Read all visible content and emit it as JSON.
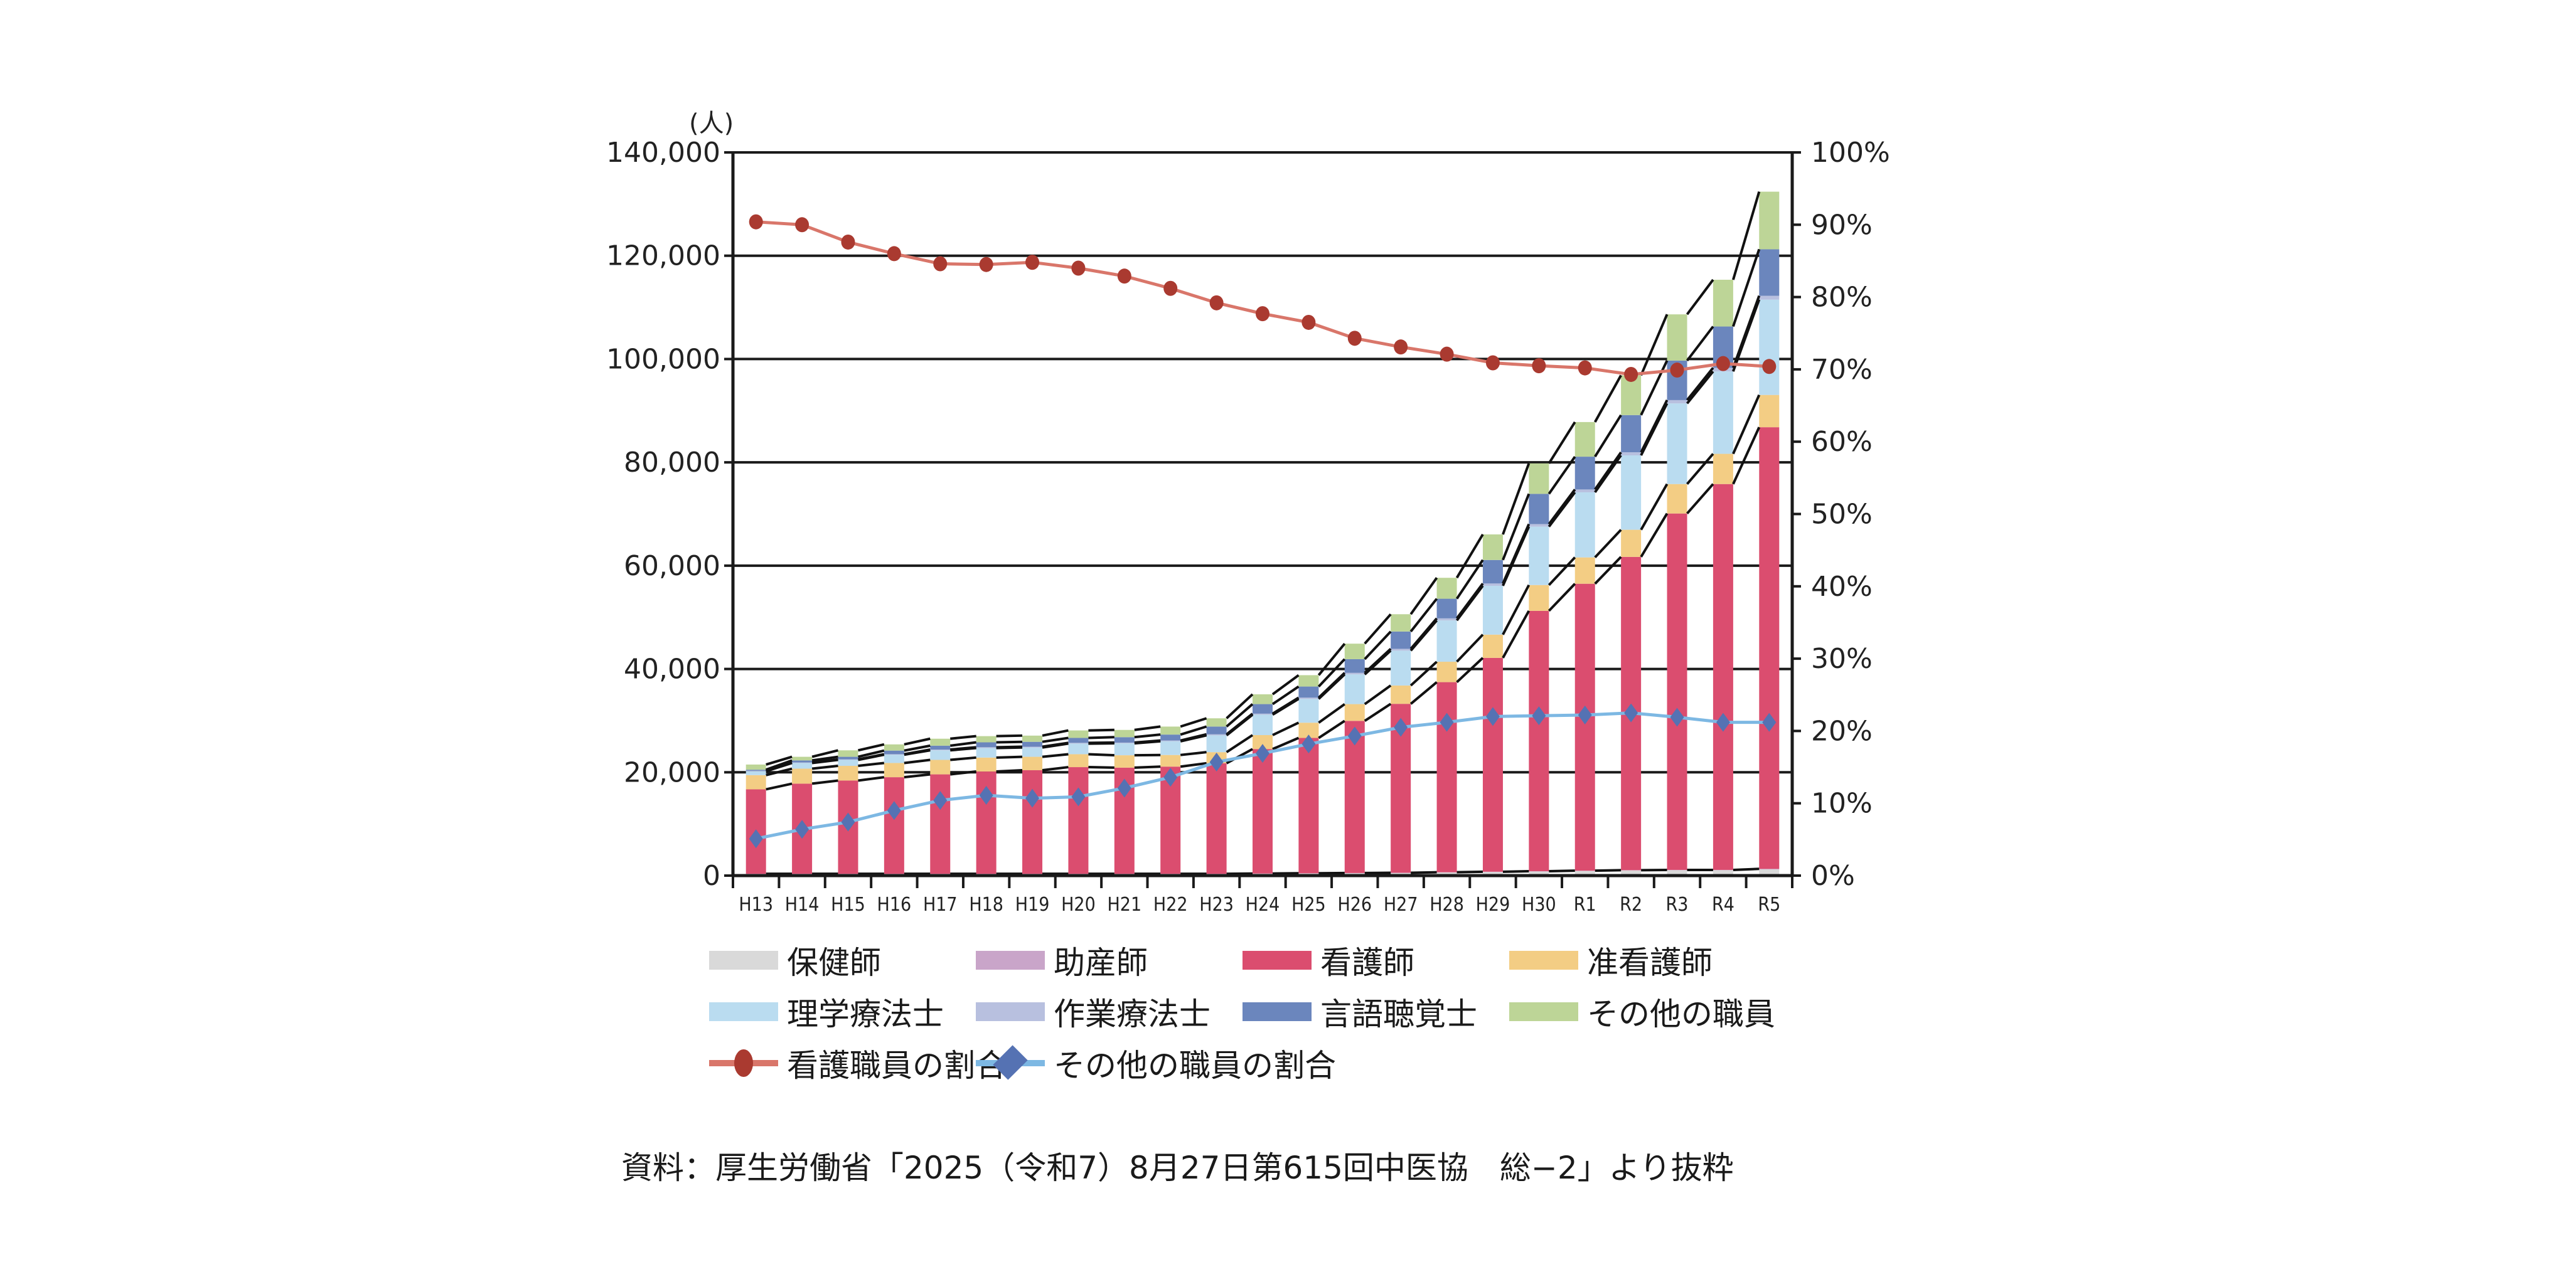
{
  "chart_data": {
    "type": "bar",
    "stacked": true,
    "title": "",
    "ylabel": "(人)",
    "y2label": "",
    "xlabel": "",
    "ylim": [
      0,
      140000
    ],
    "y2lim": [
      0,
      100
    ],
    "yticks": [
      "0",
      "20,000",
      "40,000",
      "60,000",
      "80,000",
      "100,000",
      "120,000",
      "140,000"
    ],
    "yticks_values": [
      0,
      20000,
      40000,
      60000,
      80000,
      100000,
      120000,
      140000
    ],
    "y2ticks": [
      "0%",
      "10%",
      "20%",
      "30%",
      "40%",
      "50%",
      "60%",
      "70%",
      "80%",
      "90%",
      "100%"
    ],
    "y2ticks_values": [
      0,
      10,
      20,
      30,
      40,
      50,
      60,
      70,
      80,
      90,
      100
    ],
    "grid": true,
    "legend_position": "bottom",
    "categories": [
      "H13",
      "H14",
      "H15",
      "H16",
      "H17",
      "H18",
      "H19",
      "H20",
      "H21",
      "H22",
      "H23",
      "H24",
      "H25",
      "H26",
      "H27",
      "H28",
      "H29",
      "H30",
      "R1",
      "R2",
      "R3",
      "R4",
      "R5"
    ],
    "series": [
      {
        "name": "保健師",
        "color": "#d9d9d9",
        "values": [
          300,
          300,
          300,
          300,
          300,
          300,
          300,
          300,
          300,
          300,
          300,
          350,
          400,
          450,
          500,
          600,
          700,
          800,
          900,
          1000,
          1050,
          1050,
          1200
        ]
      },
      {
        "name": "助産師",
        "color": "#c9a5c9",
        "values": [
          50,
          50,
          50,
          50,
          50,
          50,
          50,
          50,
          50,
          50,
          50,
          50,
          50,
          50,
          50,
          50,
          50,
          50,
          50,
          50,
          50,
          50,
          100
        ]
      },
      {
        "name": "看護師",
        "color": "#db4d6f",
        "values": [
          16350,
          17450,
          18050,
          18700,
          19250,
          19800,
          20050,
          20650,
          20550,
          20750,
          21400,
          24100,
          26200,
          29450,
          32700,
          36800,
          41400,
          50400,
          55550,
          60650,
          69000,
          74700,
          85500
        ]
      },
      {
        "name": "准看護師",
        "color": "#f3cd84",
        "values": [
          2750,
          2900,
          2850,
          2750,
          2800,
          2700,
          2600,
          2500,
          2400,
          2250,
          2150,
          2700,
          2950,
          3250,
          3550,
          3950,
          4500,
          5000,
          5100,
          5250,
          5700,
          5850,
          6250
        ]
      },
      {
        "name": "理学療法士",
        "color": "#badcf0",
        "values": [
          750,
          1100,
          1150,
          1600,
          1850,
          1850,
          1800,
          2050,
          2300,
          2650,
          3250,
          3950,
          4600,
          5750,
          6750,
          8000,
          9450,
          11300,
          12600,
          14400,
          15600,
          15950,
          18450
        ]
      },
      {
        "name": "作業療法士",
        "color": "#b8c0df",
        "values": [
          100,
          100,
          100,
          100,
          150,
          150,
          150,
          150,
          150,
          150,
          200,
          200,
          250,
          300,
          350,
          400,
          450,
          500,
          550,
          600,
          650,
          700,
          750
        ]
      },
      {
        "name": "言語聴覚士",
        "color": "#6b86bd",
        "values": [
          200,
          400,
          500,
          700,
          750,
          950,
          950,
          950,
          1050,
          1150,
          1500,
          1850,
          2150,
          2650,
          3350,
          3800,
          4550,
          5850,
          6350,
          7200,
          7650,
          8000,
          9000
        ]
      },
      {
        "name": "その他の職員",
        "color": "#bdd597",
        "values": [
          1000,
          700,
          1250,
          1200,
          1350,
          1200,
          1200,
          1450,
          1400,
          1550,
          1600,
          1900,
          2200,
          3000,
          3350,
          4050,
          4950,
          5900,
          6700,
          7700,
          8950,
          9050,
          11150
        ]
      }
    ],
    "line_series": [
      {
        "name": "看護職員の割合",
        "axis": "right",
        "color": "#d9766a",
        "marker": "circle",
        "marker_color": "#aa3a30",
        "values": [
          90.4,
          90.0,
          87.6,
          86.0,
          84.6,
          84.5,
          84.8,
          84.0,
          82.9,
          81.2,
          79.2,
          77.7,
          76.5,
          74.3,
          73.1,
          72.1,
          70.9,
          70.5,
          70.2,
          69.3,
          69.9,
          70.8,
          70.4
        ]
      },
      {
        "name": "その他の職員の割合",
        "axis": "right",
        "color": "#7db8e3",
        "marker": "diamond",
        "marker_color": "#5572b3",
        "values": [
          5.1,
          6.4,
          7.4,
          9.0,
          10.4,
          11.1,
          10.7,
          10.9,
          12.1,
          13.6,
          15.7,
          16.9,
          18.2,
          19.3,
          20.5,
          21.2,
          22.0,
          22.1,
          22.2,
          22.5,
          21.9,
          21.2,
          21.2
        ]
      }
    ]
  },
  "legend": {
    "rows": [
      [
        {
          "label": "保健師",
          "color": "#d9d9d9",
          "icon": "square-swatch"
        },
        {
          "label": "助産師",
          "color": "#c9a5c9",
          "icon": "square-swatch"
        },
        {
          "label": "看護師",
          "color": "#db4d6f",
          "icon": "square-swatch"
        },
        {
          "label": "准看護師",
          "color": "#f3cd84",
          "icon": "square-swatch"
        }
      ],
      [
        {
          "label": "理学療法士",
          "color": "#badcf0",
          "icon": "square-swatch"
        },
        {
          "label": "作業療法士",
          "color": "#b8c0df",
          "icon": "square-swatch"
        },
        {
          "label": "言語聴覚士",
          "color": "#6b86bd",
          "icon": "square-swatch"
        },
        {
          "label": "その他の職員",
          "color": "#bdd597",
          "icon": "square-swatch"
        }
      ],
      [
        {
          "label": "看護職員の割合",
          "color": "#d9766a",
          "marker_color": "#aa3a30",
          "icon": "line-circle-marker"
        },
        {
          "label": "その他の職員の割合",
          "color": "#7db8e3",
          "marker_color": "#5572b3",
          "icon": "line-diamond-marker"
        }
      ]
    ]
  },
  "source": "資料：厚生労働省「2025（令和7）8月27日第615回中医協　総−2」より抜粋"
}
